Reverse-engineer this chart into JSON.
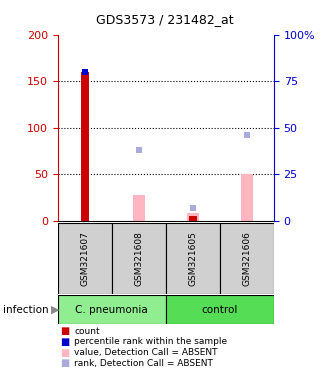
{
  "title": "GDS3573 / 231482_at",
  "samples": [
    "GSM321607",
    "GSM321608",
    "GSM321605",
    "GSM321606"
  ],
  "group_spans": [
    {
      "label": "C. pneumonia",
      "start": 0,
      "end": 2,
      "color": "#90EE90"
    },
    {
      "label": "control",
      "start": 2,
      "end": 4,
      "color": "#55DD55"
    }
  ],
  "count_values": [
    160,
    0,
    5,
    0
  ],
  "count_color": "#CC0000",
  "value_absent_bars": [
    0,
    28,
    8,
    50
  ],
  "value_absent_color": "#FFB6C1",
  "rank_absent_dots_right": [
    null,
    38,
    7,
    46
  ],
  "rank_absent_color": "#AAAADD",
  "percentile_dots_right": [
    80,
    null,
    null,
    null
  ],
  "percentile_color": "#0000CC",
  "ylim_left": [
    0,
    200
  ],
  "ylim_right": [
    0,
    100
  ],
  "yticks_left": [
    0,
    50,
    100,
    150,
    200
  ],
  "yticks_right": [
    0,
    25,
    50,
    75,
    100
  ],
  "ytick_labels_right": [
    "0",
    "25",
    "50",
    "75",
    "100%"
  ],
  "left_axis_color": "#CC0000",
  "right_axis_color": "#0000CC",
  "legend_items": [
    {
      "color": "#CC0000",
      "label": "count"
    },
    {
      "color": "#0000CC",
      "label": "percentile rank within the sample"
    },
    {
      "color": "#FFB6C1",
      "label": "value, Detection Call = ABSENT"
    },
    {
      "color": "#AAAADD",
      "label": "rank, Detection Call = ABSENT"
    }
  ],
  "infection_label": "infection"
}
